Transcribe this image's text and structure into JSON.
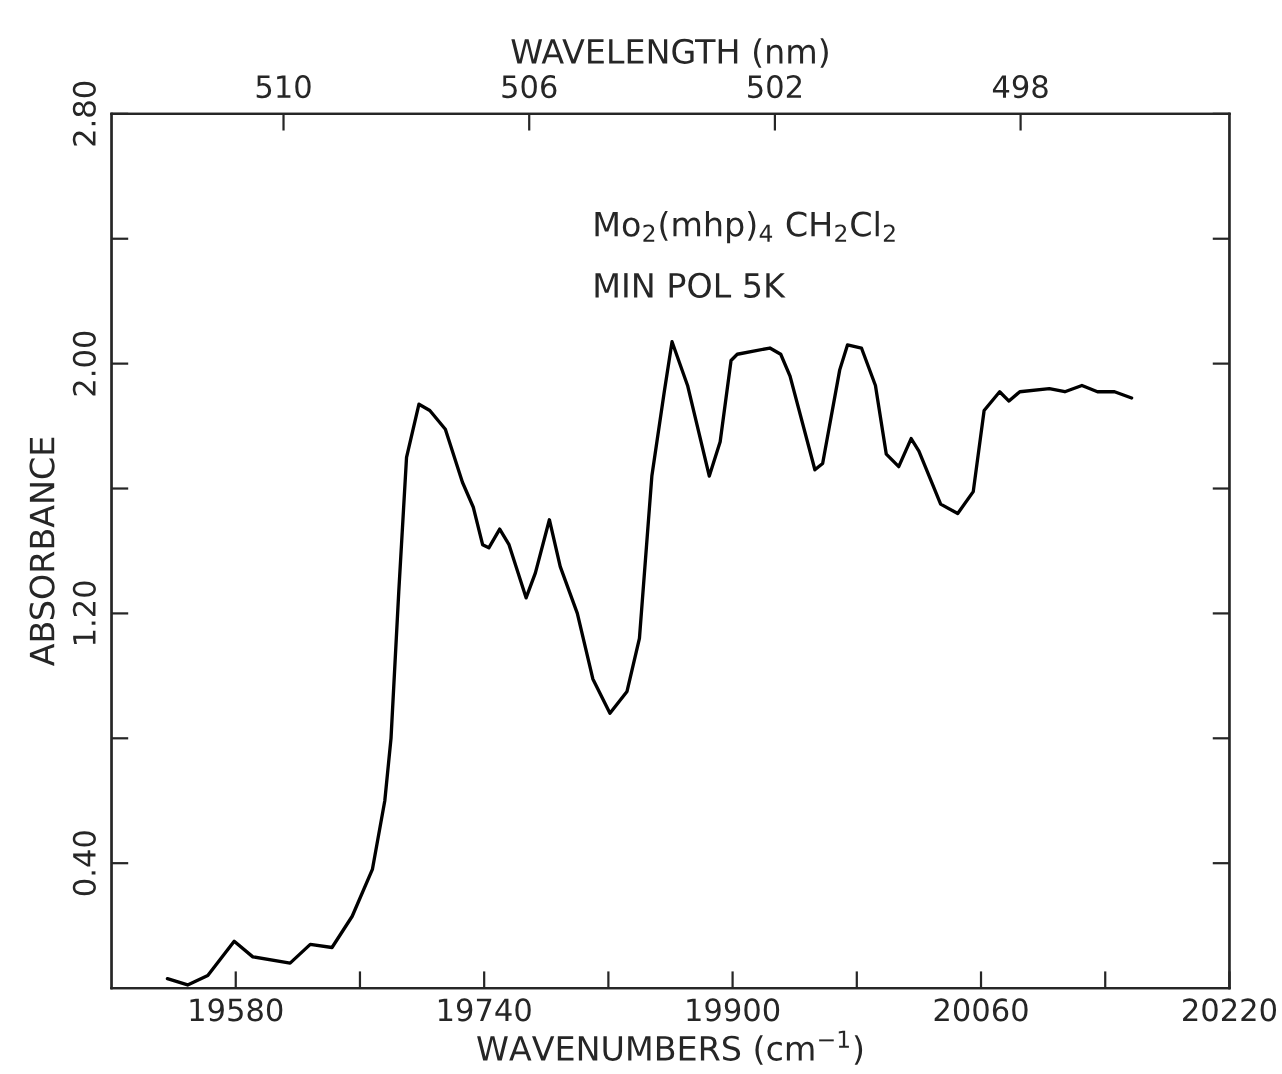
{
  "chart_data": {
    "type": "line",
    "xlabel": "WAVENUMBERS (cm$^{−1}$)",
    "ylabel": "ABSORBANCE",
    "x2label": "WAVELENGTH (nm)",
    "annotations": [
      "Mo$_{2}$(mhp)$_{4}$ CH$_{2}$Cl$_{2}$",
      "MIN POL 5K"
    ],
    "xlim": [
      19500,
      20220
    ],
    "xticks": [
      19580,
      {
        "value": 19660,
        "label": null
      },
      19740,
      {
        "value": 19820,
        "label": null
      },
      19900,
      {
        "value": 19980,
        "label": null
      },
      20060,
      {
        "value": 20140,
        "label": null
      },
      20220
    ],
    "x2lim": [
      512.8,
      494.6
    ],
    "x2ticks": [
      510,
      506,
      502,
      498
    ],
    "ylim": [
      0,
      2.8
    ],
    "yticks": [
      {
        "value": 0.4,
        "label": "0.40"
      },
      {
        "value": 0.8,
        "label": null
      },
      {
        "value": 1.2,
        "label": "1.20"
      },
      {
        "value": 1.6,
        "label": null
      },
      {
        "value": 2.0,
        "label": "2.00"
      },
      {
        "value": 2.4,
        "label": null
      },
      {
        "value": 2.8,
        "label": "2.80"
      }
    ],
    "grid": false,
    "marker": "none",
    "line_style": "solid",
    "series": [
      {
        "color": "#000000",
        "x": [
          19536,
          19549,
          19562,
          19579,
          19591,
          19615,
          19628,
          19642,
          19655,
          19668,
          19676,
          19680,
          19685,
          19690,
          19698,
          19705,
          19715,
          19726,
          19733,
          19739,
          19743,
          19750,
          19756,
          19767,
          19773,
          19782,
          19789,
          19800,
          19810,
          19821,
          19832,
          19840,
          19848,
          19856,
          19861,
          19871,
          19885,
          19892,
          19899,
          19903,
          19924,
          19931,
          19937,
          19953,
          19958,
          19969,
          19974,
          19983,
          19992,
          19999,
          20007,
          20015,
          20020,
          20034,
          20045,
          20055,
          20062,
          20072,
          20078,
          20085,
          20104,
          20114,
          20125,
          20135,
          20146,
          20157
        ],
        "values": [
          0.03,
          0.01,
          0.04,
          0.15,
          0.1,
          0.08,
          0.14,
          0.13,
          0.23,
          0.38,
          0.6,
          0.8,
          1.27,
          1.7,
          1.87,
          1.85,
          1.79,
          1.62,
          1.54,
          1.42,
          1.41,
          1.47,
          1.42,
          1.25,
          1.33,
          1.5,
          1.35,
          1.2,
          0.99,
          0.88,
          0.95,
          1.12,
          1.64,
          1.91,
          2.07,
          1.93,
          1.64,
          1.75,
          2.01,
          2.03,
          2.05,
          2.03,
          1.96,
          1.66,
          1.68,
          1.98,
          2.06,
          2.05,
          1.93,
          1.71,
          1.67,
          1.76,
          1.72,
          1.55,
          1.52,
          1.59,
          1.85,
          1.91,
          1.88,
          1.91,
          1.92,
          1.91,
          1.93,
          1.91,
          1.91,
          1.89
        ]
      }
    ]
  }
}
